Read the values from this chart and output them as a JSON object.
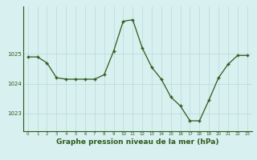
{
  "hours": [
    0,
    1,
    2,
    3,
    4,
    5,
    6,
    7,
    8,
    9,
    10,
    11,
    12,
    13,
    14,
    15,
    16,
    17,
    18,
    19,
    20,
    21,
    22,
    23
  ],
  "pressure": [
    1024.9,
    1024.9,
    1024.7,
    1024.2,
    1024.15,
    1024.15,
    1024.15,
    1024.15,
    1024.3,
    1025.1,
    1026.1,
    1026.15,
    1025.2,
    1024.55,
    1024.15,
    1023.55,
    1023.25,
    1022.75,
    1022.75,
    1023.45,
    1024.2,
    1024.65,
    1024.95,
    1024.95
  ],
  "line_color": "#2d5a1b",
  "marker": "+",
  "background_color": "#d8f0f0",
  "grid_color": "#b8dada",
  "xlabel": "Graphe pression niveau de la mer (hPa)",
  "xlabel_fontsize": 6.5,
  "tick_color": "#2d5a1b",
  "yticks": [
    1023,
    1024,
    1025
  ],
  "ylim": [
    1022.4,
    1026.6
  ],
  "xlim": [
    -0.5,
    23.5
  ]
}
